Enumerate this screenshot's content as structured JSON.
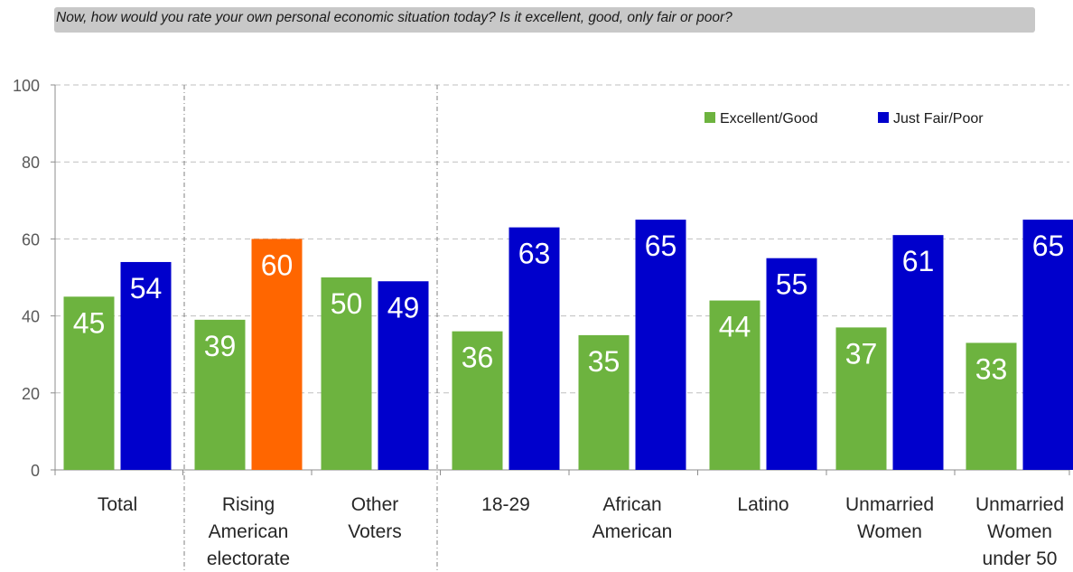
{
  "question": "Now, how would you rate your own personal economic situation today? Is it excellent, good, only fair or poor?",
  "colors": {
    "excellent_good": "#6db33f",
    "just_fair_poor": "#0000cc",
    "highlight": "#ff6600",
    "axis_text": "#595959",
    "grid": "#bfbfbf",
    "question_bg": "#c8c8c8"
  },
  "chart_data": {
    "type": "bar",
    "title": "",
    "xlabel": "",
    "ylabel": "",
    "ylim": [
      0,
      100
    ],
    "yticks": [
      0,
      20,
      40,
      60,
      80,
      100
    ],
    "grid": true,
    "legend_position": "top-right",
    "categories": [
      [
        "Total"
      ],
      [
        "Rising",
        "American",
        "electorate"
      ],
      [
        "Other",
        "Voters"
      ],
      [
        "18-29"
      ],
      [
        "African",
        "American"
      ],
      [
        "Latino"
      ],
      [
        "Unmarried",
        "Women"
      ],
      [
        "Unmarried",
        "Women",
        "under 50"
      ]
    ],
    "series": [
      {
        "name": "Excellent/Good",
        "values": [
          45,
          39,
          50,
          36,
          35,
          44,
          37,
          33
        ]
      },
      {
        "name": "Just Fair/Poor",
        "values": [
          54,
          60,
          49,
          63,
          65,
          55,
          61,
          65
        ]
      }
    ],
    "highlighted_bars": [
      {
        "series": 1,
        "index": 1
      }
    ]
  }
}
